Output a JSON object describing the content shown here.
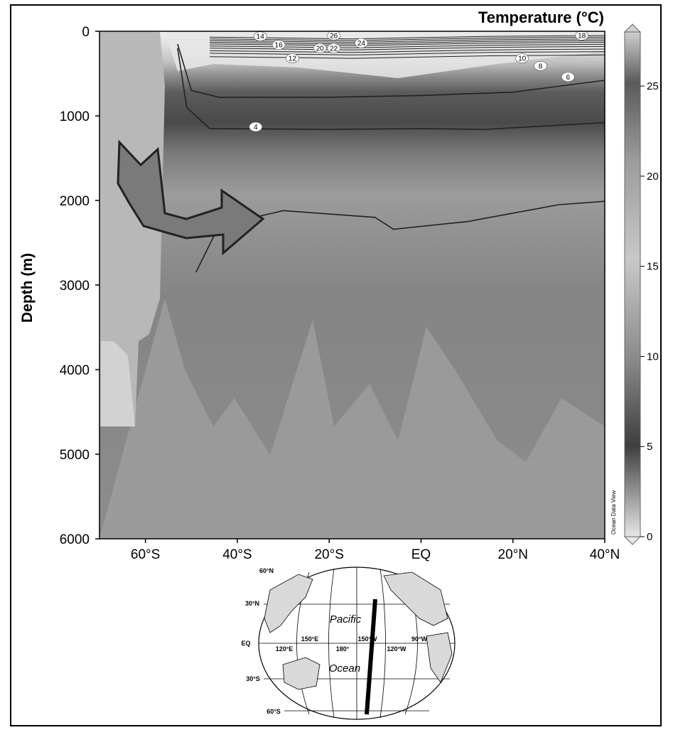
{
  "chart_data": {
    "type": "heatmap",
    "title": "Temperature (°C)",
    "ylabel": "Depth (m)",
    "xlabel": "",
    "x_ticks": [
      "60°S",
      "40°S",
      "20°S",
      "EQ",
      "20°N",
      "40°N"
    ],
    "x_tick_values": [
      -60,
      -40,
      -20,
      0,
      20,
      40
    ],
    "xlim": [
      -70,
      40
    ],
    "y_ticks": [
      "0",
      "1000",
      "2000",
      "3000",
      "4000",
      "5000",
      "6000"
    ],
    "y_tick_values": [
      0,
      1000,
      2000,
      3000,
      4000,
      5000,
      6000
    ],
    "ylim": [
      0,
      6000
    ],
    "y_reversed": true,
    "colorbar": {
      "ticks": [
        "0",
        "5",
        "10",
        "15",
        "20",
        "25"
      ],
      "tick_values": [
        0,
        5,
        10,
        15,
        20,
        25
      ],
      "range": [
        0,
        28
      ]
    },
    "contour_labels": [
      {
        "label": "14",
        "lat": -35,
        "depth": 60
      },
      {
        "label": "16",
        "lat": -31,
        "depth": 160
      },
      {
        "label": "12",
        "lat": -28,
        "depth": 320
      },
      {
        "label": "20",
        "lat": -22,
        "depth": 200
      },
      {
        "label": "22",
        "lat": -19,
        "depth": 200
      },
      {
        "label": "26",
        "lat": -19,
        "depth": 50
      },
      {
        "label": "24",
        "lat": -13,
        "depth": 140
      },
      {
        "label": "18",
        "lat": 35,
        "depth": 50
      },
      {
        "label": "10",
        "lat": 22,
        "depth": 320
      },
      {
        "label": "8",
        "lat": 26,
        "depth": 410
      },
      {
        "label": "6",
        "lat": 32,
        "depth": 540
      },
      {
        "label": "4",
        "lat": -36,
        "depth": 1130
      }
    ],
    "contours": [
      {
        "level": 4,
        "points": [
          [
            -53,
            200
          ],
          [
            -51,
            900
          ],
          [
            -46,
            1150
          ],
          [
            -20,
            1160
          ],
          [
            0,
            1150
          ],
          [
            14,
            1160
          ],
          [
            40,
            1080
          ]
        ]
      },
      {
        "level": 6,
        "points": [
          [
            -53,
            150
          ],
          [
            -50,
            700
          ],
          [
            -44,
            780
          ],
          [
            -20,
            780
          ],
          [
            0,
            760
          ],
          [
            20,
            720
          ],
          [
            40,
            580
          ]
        ]
      },
      {
        "level": 2,
        "points": [
          [
            -49,
            2850
          ],
          [
            -44,
            2300
          ],
          [
            -30,
            2120
          ],
          [
            -10,
            2200
          ],
          [
            -6,
            2340
          ],
          [
            10,
            2250
          ],
          [
            30,
            2050
          ],
          [
            40,
            2010
          ]
        ]
      }
    ]
  },
  "watermark": "Ocean Data View",
  "map": {
    "lat_labels": [
      "60°N",
      "30°N",
      "EQ",
      "30°S",
      "60°S"
    ],
    "lon_labels": [
      "150°E",
      "120°E",
      "180°",
      "150°W",
      "120°W",
      "90°W"
    ],
    "ocean_name_1": "Pacific",
    "ocean_name_2": "Ocean"
  },
  "colors": {
    "warm": "#d8d8d8",
    "mid": "#4a4a4a",
    "cold": "#8a8a8a",
    "contour": "#222222",
    "arrow": "#7a7a7a"
  }
}
